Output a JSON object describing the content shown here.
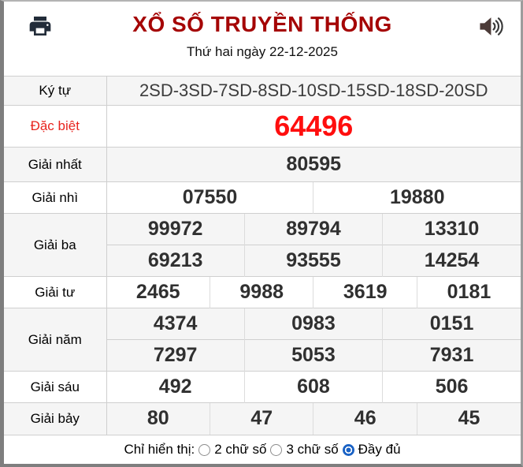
{
  "header": {
    "title": "XỔ SỐ TRUYỀN THỐNG",
    "date": "Thứ hai ngày 22-12-2025"
  },
  "colors": {
    "title_red": "#a50505",
    "special_label_red": "#e8251f",
    "special_number_red": "#ff0e0e",
    "number_dark": "#303030",
    "radio_blue": "#1b63c5",
    "stripe_gray": "#f5f5f5"
  },
  "icons": {
    "printer": "printer-icon",
    "speaker": "speaker-icon"
  },
  "table": {
    "rows": [
      {
        "label": "Ký tự",
        "variant": "serial",
        "groups": [
          [
            "2SD-3SD-7SD-8SD-10SD-15SD-18SD-20SD"
          ]
        ]
      },
      {
        "label": "Đặc biệt",
        "variant": "special",
        "groups": [
          [
            "64496"
          ]
        ]
      },
      {
        "label": "Giải nhất",
        "variant": "plain",
        "groups": [
          [
            "80595"
          ]
        ]
      },
      {
        "label": "Giải nhì",
        "variant": "plain",
        "groups": [
          [
            "07550",
            "19880"
          ]
        ]
      },
      {
        "label": "Giải ba",
        "variant": "plain",
        "groups": [
          [
            "99972",
            "89794",
            "13310"
          ],
          [
            "69213",
            "93555",
            "14254"
          ]
        ]
      },
      {
        "label": "Giải tư",
        "variant": "plain",
        "groups": [
          [
            "2465",
            "9988",
            "3619",
            "0181"
          ]
        ]
      },
      {
        "label": "Giải năm",
        "variant": "plain",
        "groups": [
          [
            "4374",
            "0983",
            "0151"
          ],
          [
            "7297",
            "5053",
            "7931"
          ]
        ]
      },
      {
        "label": "Giải sáu",
        "variant": "plain",
        "groups": [
          [
            "492",
            "608",
            "506"
          ]
        ]
      },
      {
        "label": "Giải bảy",
        "variant": "plain",
        "groups": [
          [
            "80",
            "47",
            "46",
            "45"
          ]
        ]
      }
    ]
  },
  "footer": {
    "label": "Chỉ hiển thị:",
    "options": [
      {
        "label": "2 chữ số",
        "selected": false
      },
      {
        "label": "3 chữ số",
        "selected": false
      },
      {
        "label": "Đầy đủ",
        "selected": true
      }
    ]
  }
}
